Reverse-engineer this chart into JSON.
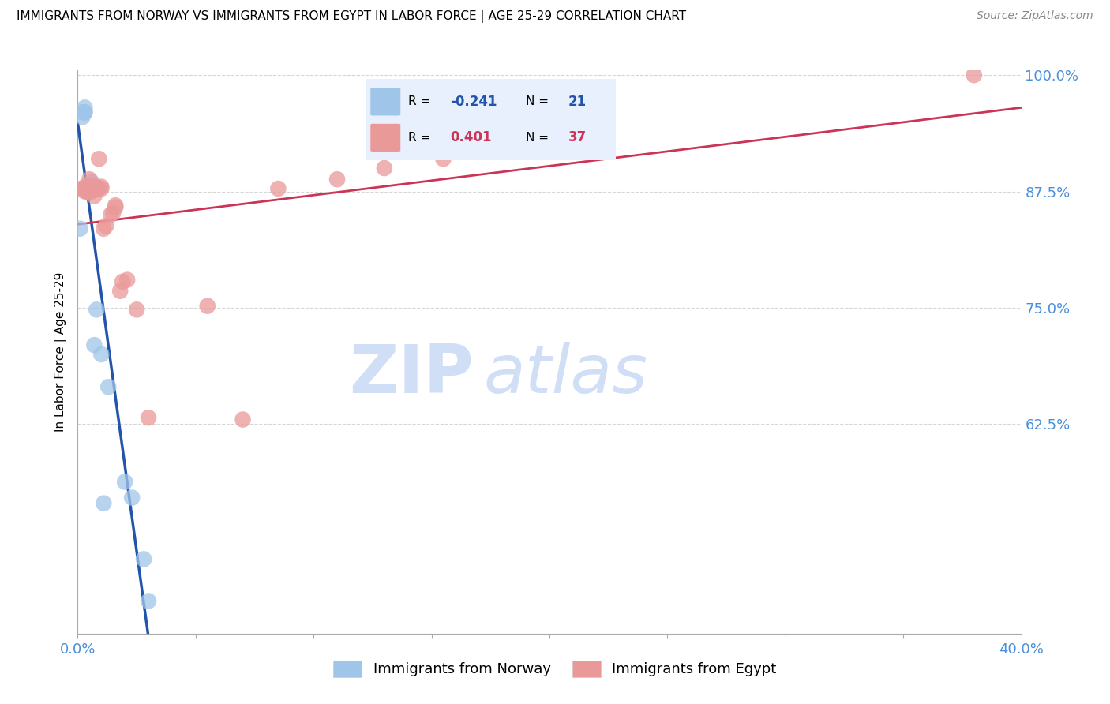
{
  "title": "IMMIGRANTS FROM NORWAY VS IMMIGRANTS FROM EGYPT IN LABOR FORCE | AGE 25-29 CORRELATION CHART",
  "source": "Source: ZipAtlas.com",
  "ylabel": "In Labor Force | Age 25-29",
  "xlim": [
    0.0,
    0.4
  ],
  "ylim": [
    0.4,
    1.005
  ],
  "norway_r": -0.241,
  "norway_n": 21,
  "egypt_r": 0.401,
  "egypt_n": 37,
  "norway_color": "#9fc5e8",
  "egypt_color": "#ea9999",
  "norway_line_color": "#2255aa",
  "egypt_line_color": "#cc3355",
  "watermark_zip": "ZIP",
  "watermark_atlas": "atlas",
  "watermark_color": "#d0dff5",
  "legend_bg": "#e8f0fd",
  "grid_color": "#cccccc",
  "tick_color": "#4a90d9",
  "axis_color": "#aaaaaa",
  "norway_x": [
    0.001,
    0.002,
    0.002,
    0.003,
    0.003,
    0.003,
    0.004,
    0.004,
    0.005,
    0.005,
    0.006,
    0.007,
    0.008,
    0.009,
    0.01,
    0.011,
    0.013,
    0.02,
    0.023,
    0.028,
    0.03
  ],
  "norway_y": [
    0.835,
    0.955,
    0.96,
    0.96,
    0.96,
    0.965,
    0.875,
    0.875,
    0.88,
    0.88,
    0.885,
    0.71,
    0.748,
    0.878,
    0.7,
    0.54,
    0.665,
    0.563,
    0.546,
    0.48,
    0.435
  ],
  "egypt_x": [
    0.002,
    0.003,
    0.003,
    0.003,
    0.004,
    0.004,
    0.005,
    0.005,
    0.005,
    0.006,
    0.006,
    0.007,
    0.007,
    0.008,
    0.008,
    0.009,
    0.01,
    0.01,
    0.011,
    0.012,
    0.014,
    0.015,
    0.016,
    0.016,
    0.018,
    0.019,
    0.021,
    0.025,
    0.03,
    0.055,
    0.07,
    0.085,
    0.11,
    0.13,
    0.155,
    0.17,
    0.38
  ],
  "egypt_y": [
    0.878,
    0.875,
    0.878,
    0.88,
    0.875,
    0.878,
    0.875,
    0.878,
    0.888,
    0.875,
    0.88,
    0.87,
    0.88,
    0.878,
    0.88,
    0.91,
    0.878,
    0.88,
    0.835,
    0.838,
    0.85,
    0.852,
    0.858,
    0.86,
    0.768,
    0.778,
    0.78,
    0.748,
    0.632,
    0.752,
    0.63,
    0.878,
    0.888,
    0.9,
    0.91,
    0.93,
    1.0
  ],
  "xtick_positions": [
    0.0,
    0.05,
    0.1,
    0.15,
    0.2,
    0.25,
    0.3,
    0.35,
    0.4
  ],
  "xtick_labels_show": {
    "0.0": "0.0%",
    "0.4": "40.0%"
  },
  "ytick_right": [
    0.625,
    0.75,
    0.875,
    1.0
  ],
  "ytick_right_labels": [
    "62.5%",
    "75.0%",
    "87.5%",
    "100.0%"
  ]
}
